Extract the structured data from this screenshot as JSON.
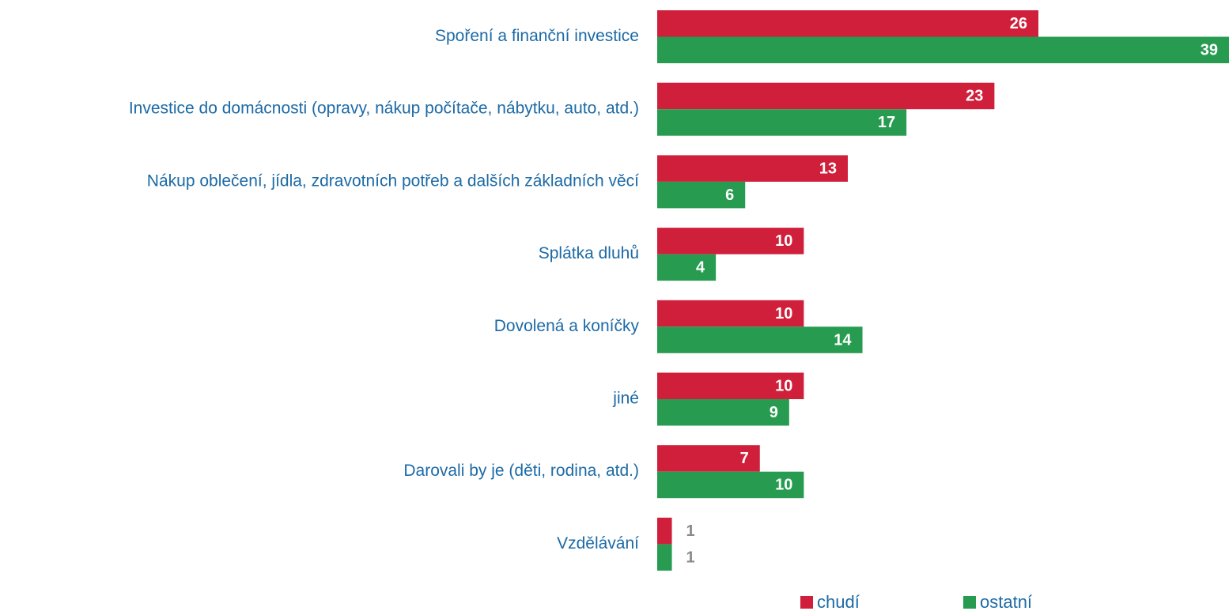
{
  "chart_data": {
    "type": "bar",
    "orientation": "horizontal",
    "categories": [
      "Spoření a finanční investice",
      "Investice do domácnosti (opravy, nákup počítače, nábytku, auto, atd.)",
      "Nákup oblečení, jídla, zdravotních potřeb a dalších základních věcí",
      "Splátka dluhů",
      "Dovolená a koníčky",
      "jiné",
      "Darovali by je (děti, rodina, atd.)",
      "Vzdělávání"
    ],
    "series": [
      {
        "name": "chudí",
        "color": "#d01f3a",
        "values": [
          26,
          23,
          13,
          10,
          10,
          10,
          7,
          1
        ]
      },
      {
        "name": "ostatní",
        "color": "#279b50",
        "values": [
          39,
          17,
          6,
          4,
          14,
          9,
          10,
          1
        ]
      }
    ],
    "xlim": [
      0,
      39
    ],
    "legend": "bottom"
  }
}
